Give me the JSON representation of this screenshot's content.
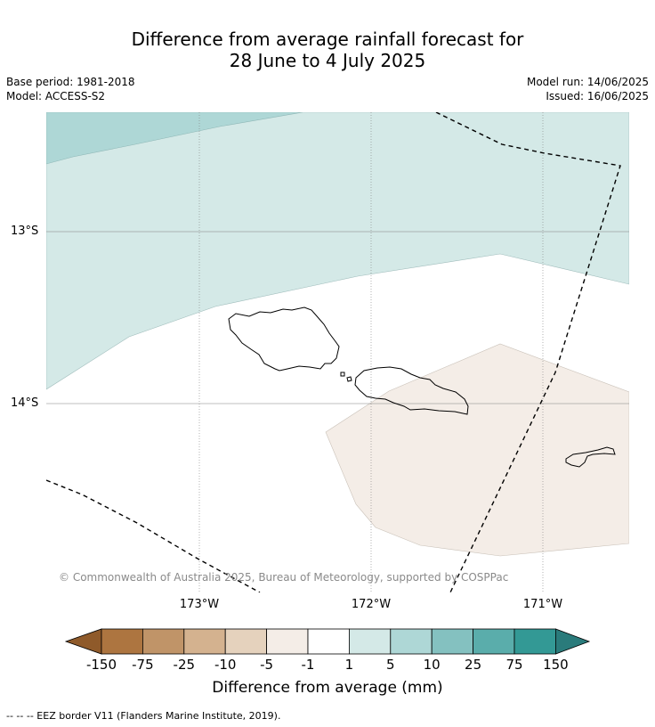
{
  "title_line1": "Difference from average rainfall forecast for",
  "title_line2": "28 June to 4 July 2025",
  "meta": {
    "base_period": "Base period: 1981-2018",
    "model": "Model: ACCESS-S2",
    "model_run": "Model run: 14/06/2025",
    "issued": "Issued: 16/06/2025"
  },
  "map": {
    "lat_labels": [
      "13°S",
      "14°S"
    ],
    "lon_labels": [
      "173°W",
      "172°W",
      "171°W"
    ],
    "copyright": "© Commonwealth of Australia 2025, Bureau of Meteorology, supported by COSPPac",
    "colors": {
      "wet_light": "#d4e9e7",
      "wet_mid": "#aed7d6",
      "dry_light": "#f4ede7",
      "coast": "#000000",
      "grid": "#808080"
    }
  },
  "colorbar": {
    "ticks": [
      "-150",
      "-75",
      "-25",
      "-10",
      "-5",
      "-1",
      "1",
      "5",
      "10",
      "25",
      "75",
      "150"
    ],
    "colors": [
      "#8f5a2a",
      "#ad7540",
      "#c09468",
      "#d4b28f",
      "#e5d2bd",
      "#f4ede7",
      "#ffffff",
      "#d4e9e7",
      "#aed7d6",
      "#84c1c0",
      "#5aadab",
      "#339995",
      "#2a7b7b"
    ],
    "label": "Difference from average (mm)"
  },
  "footer": "--  --  -- EEZ border V11 (Flanders Marine Institute, 2019)."
}
